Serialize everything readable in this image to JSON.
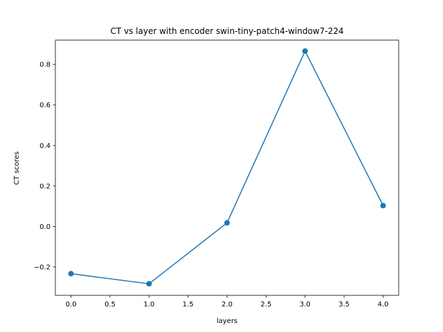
{
  "chart_data": {
    "type": "line",
    "title": "CT vs layer with encoder swin-tiny-patch4-window7-224",
    "xlabel": "layers",
    "ylabel": "CT scores",
    "x": [
      0,
      1,
      2,
      3,
      4
    ],
    "series": [
      {
        "values": [
          -0.233,
          -0.283,
          0.018,
          0.866,
          0.103
        ],
        "color": "#1f77b4",
        "marker": "circle"
      }
    ],
    "xlim": [
      -0.2,
      4.2
    ],
    "ylim": [
      -0.34,
      0.92
    ],
    "xticks": [
      0.0,
      0.5,
      1.0,
      1.5,
      2.0,
      2.5,
      3.0,
      3.5,
      4.0
    ],
    "xtick_labels": [
      "0.0",
      "0.5",
      "1.0",
      "1.5",
      "2.0",
      "2.5",
      "3.0",
      "3.5",
      "4.0"
    ],
    "yticks": [
      -0.2,
      0.0,
      0.2,
      0.4,
      0.6,
      0.8
    ],
    "ytick_labels": [
      "−0.2",
      "0.0",
      "0.2",
      "0.4",
      "0.6",
      "0.8"
    ],
    "grid": false,
    "legend": false
  }
}
